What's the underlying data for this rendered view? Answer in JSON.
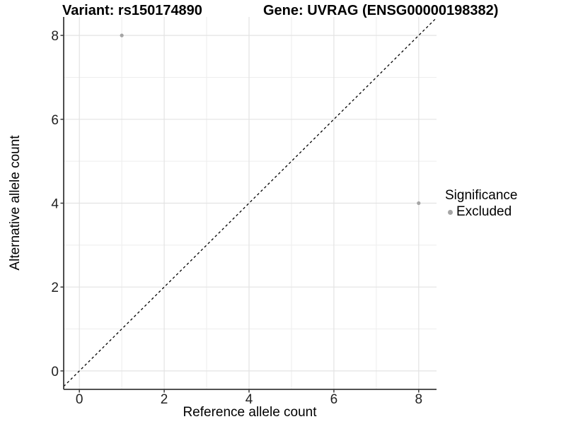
{
  "chart_data": {
    "type": "scatter",
    "titles": {
      "left": "Variant: rs150174890",
      "right": "Gene: UVRAG (ENSG00000198382)"
    },
    "xlabel": "Reference allele count",
    "ylabel": "Alternative allele count",
    "xlim": [
      -0.37,
      8.42
    ],
    "ylim": [
      -0.44,
      8.44
    ],
    "x_ticks": [
      0,
      2,
      4,
      6,
      8
    ],
    "y_ticks": [
      0,
      2,
      4,
      6,
      8
    ],
    "x_minor": [
      1,
      3,
      5,
      7
    ],
    "y_minor": [
      1,
      3,
      5,
      7
    ],
    "grid": true,
    "series": [
      {
        "name": "Excluded",
        "color": "#a5a5a5",
        "points": [
          {
            "x": 1,
            "y": 8
          },
          {
            "x": 8,
            "y": 4
          }
        ]
      }
    ],
    "refline": {
      "slope": 1,
      "intercept": 0,
      "style": "dashed",
      "color": "#000000"
    },
    "legend": {
      "title": "Significance",
      "position": "right",
      "items": [
        {
          "label": "Excluded",
          "color": "#a5a5a5"
        }
      ]
    },
    "colors": {
      "background": "#ffffff",
      "grid_major": "#e3e3e3",
      "grid_minor": "#ededed",
      "axis_line": "#3a3a3a",
      "tick_label": "#222222",
      "point": "#a5a5a5"
    }
  }
}
